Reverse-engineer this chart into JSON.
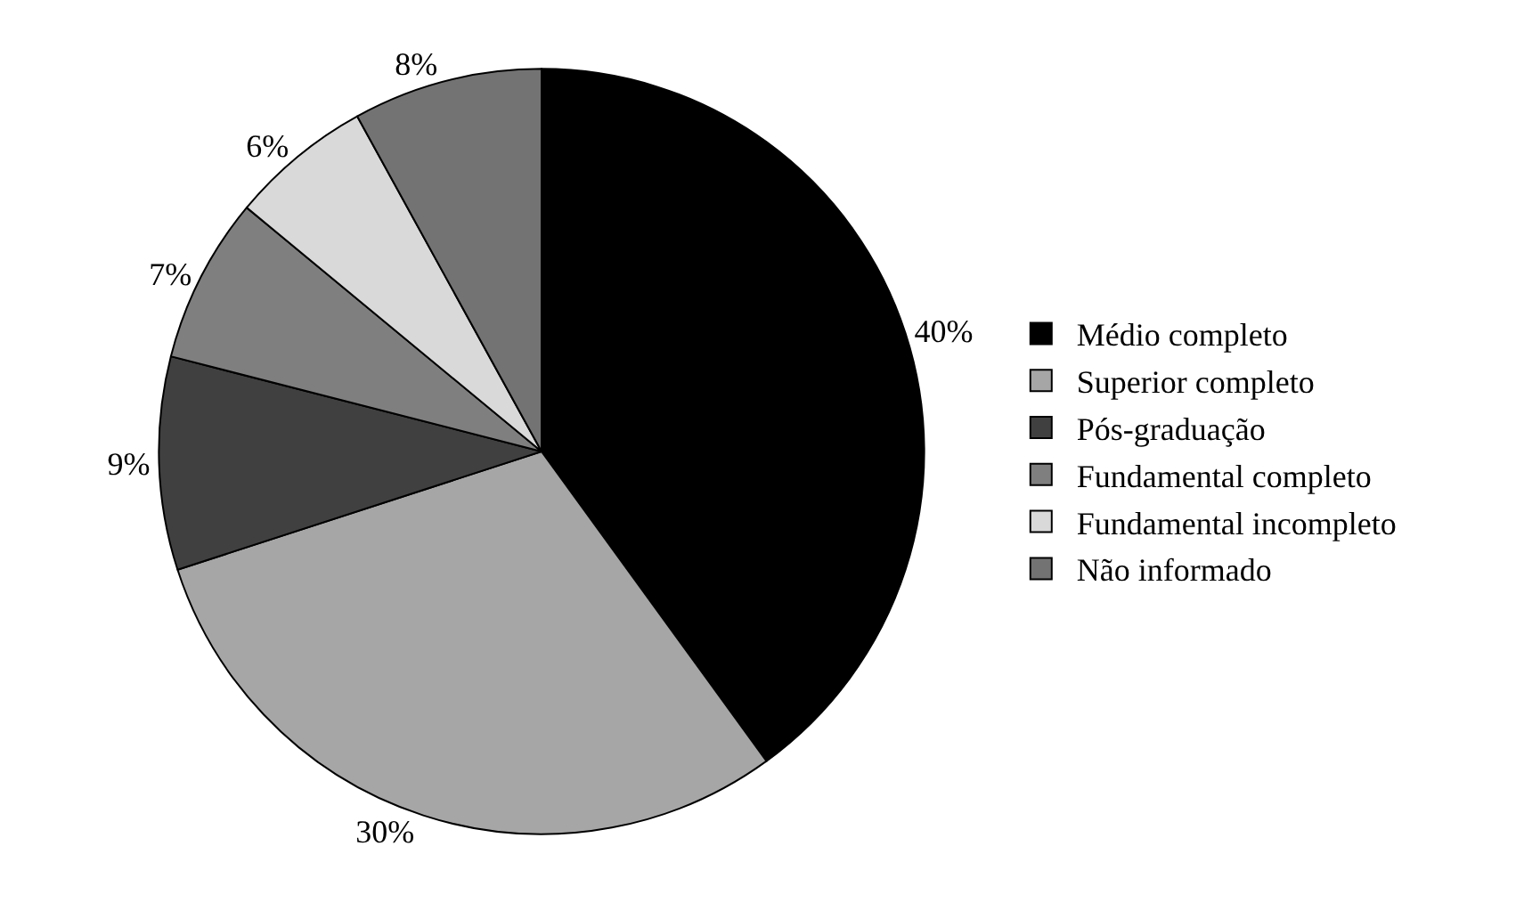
{
  "chart_data": {
    "type": "pie",
    "categories": [
      "Médio completo",
      "Superior completo",
      "Pós-graduação",
      "Fundamental completo",
      "Fundamental incompleto",
      "Não informado"
    ],
    "values": [
      40,
      30,
      9,
      7,
      6,
      8
    ],
    "value_labels": [
      "40%",
      "30%",
      "9%",
      "7%",
      "6%",
      "8%"
    ],
    "colors": [
      "#000000",
      "#a6a6a6",
      "#404040",
      "#7f7f7f",
      "#d9d9d9",
      "#737373"
    ],
    "legend": "right"
  }
}
